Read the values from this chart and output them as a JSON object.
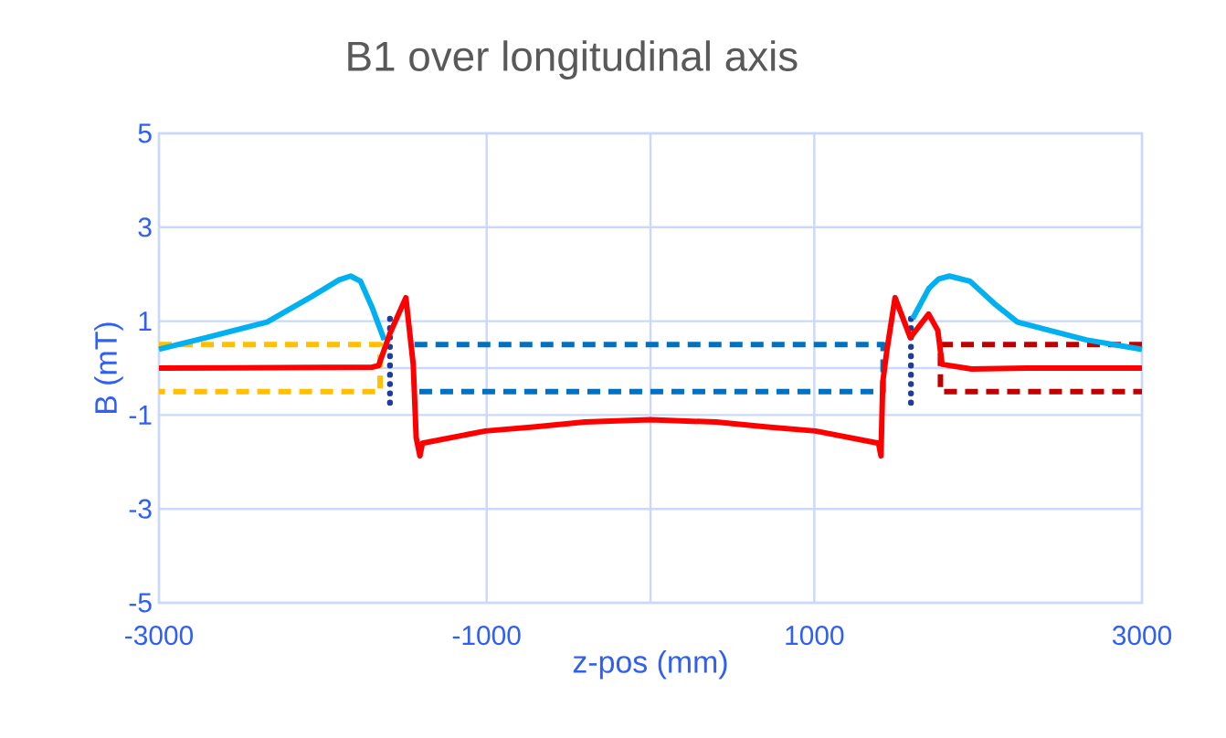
{
  "chart_data": {
    "type": "line",
    "title": "B1 over longitudinal axis",
    "xlabel": "z-pos (mm)",
    "ylabel": "B (mT)",
    "xlim": [
      -3000,
      3000
    ],
    "ylim": [
      -5,
      5
    ],
    "xticks": [
      -3000,
      -1000,
      {
        "value": 0,
        "label": null
      },
      1000,
      3000
    ],
    "yticks": [
      -5,
      -3,
      -1,
      {
        "value": 0,
        "label": null
      },
      1,
      3,
      5
    ],
    "grid": true,
    "marker": "none",
    "series": [
      {
        "color": "#ffc000",
        "line_style": "dashed",
        "x": [
          -3000,
          -1650,
          -1650,
          -3000
        ],
        "values": [
          0.5,
          0.5,
          -0.5,
          -0.5
        ]
      },
      {
        "color": "#0070c0",
        "line_style": "dashed",
        "x": [
          -1440,
          1420,
          1420,
          -1440
        ],
        "values": [
          0.5,
          0.5,
          -0.5,
          -0.5
        ]
      },
      {
        "color": "#c00000",
        "line_style": "dashed",
        "x": [
          3000,
          1770,
          1770,
          3000
        ],
        "values": [
          0.5,
          0.5,
          -0.5,
          -0.5
        ]
      },
      {
        "color": "#1f3c99",
        "line_style": "dotted",
        "x": [
          -1590,
          -1590,
          0,
          1590,
          1590
        ],
        "values": [
          1.05,
          -0.9,
          null,
          1.05,
          -0.9
        ]
      },
      {
        "color": "#00b0f0",
        "line_style": "solid",
        "x": [
          -3000,
          -2700,
          -2340,
          -2070,
          -1900,
          -1830,
          -1770,
          -1700,
          -1625,
          null,
          1600,
          1700,
          1760,
          1825,
          1950,
          2100,
          2240,
          2660,
          3000
        ],
        "values": [
          0.4,
          0.66,
          0.98,
          1.52,
          1.88,
          1.96,
          1.85,
          1.3,
          0.6,
          null,
          1.05,
          1.7,
          1.9,
          1.96,
          1.85,
          1.37,
          0.98,
          0.6,
          0.4
        ]
      },
      {
        "color": "#ff0000",
        "line_style": "solid",
        "x": [
          -3000,
          -1700,
          -1660,
          -1590,
          -1493,
          -1448,
          -1430,
          -1407,
          -1392,
          -1008,
          -700,
          -400,
          0,
          400,
          700,
          1008,
          1392,
          1407,
          1418,
          1444,
          1493,
          1586,
          1698,
          1754,
          1780,
          1960,
          2295,
          3000
        ],
        "values": [
          0,
          0.02,
          0.05,
          0.74,
          1.5,
          0.08,
          -1.48,
          -1.87,
          -1.6,
          -1.34,
          -1.25,
          -1.15,
          -1.1,
          -1.15,
          -1.25,
          -1.34,
          -1.6,
          -1.87,
          -0.3,
          0.4,
          1.5,
          0.65,
          1.15,
          0.8,
          0.08,
          -0.02,
          0,
          0
        ]
      }
    ]
  }
}
